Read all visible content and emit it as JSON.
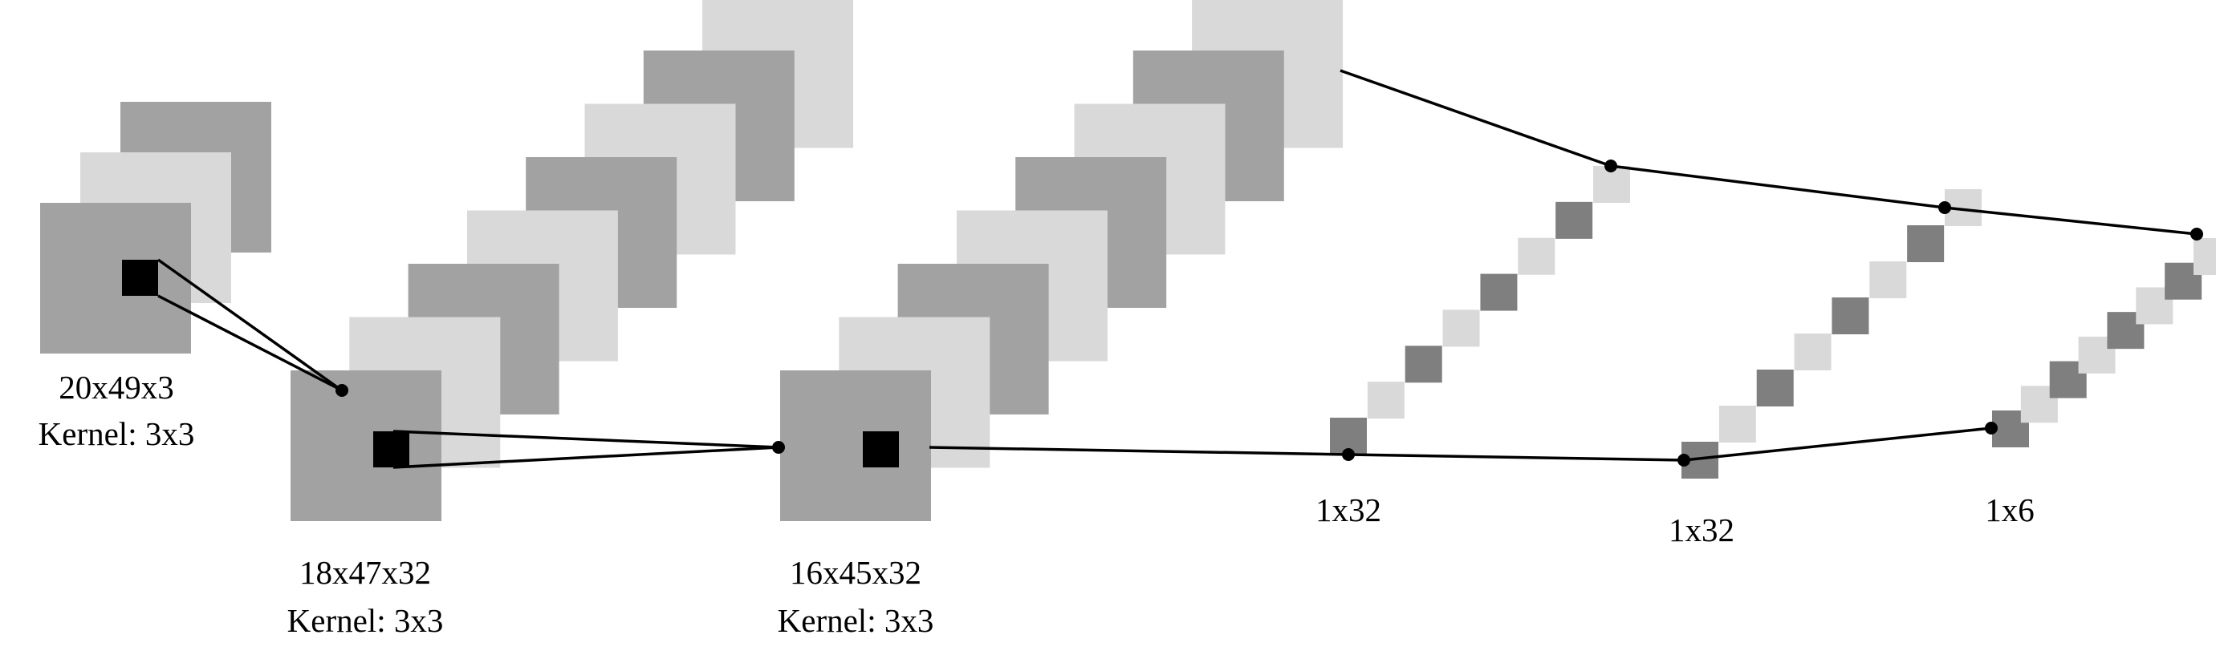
{
  "colors": {
    "dark_gray": "#a2a2a2",
    "light_gray": "#d9d9d9",
    "cell_dark": "#7f7f7f",
    "kernel": "#000000",
    "line": "#000000"
  },
  "layers": [
    {
      "id": "input",
      "shape": "20x49x3",
      "kernel": "Kernel: 3x3",
      "feature_maps": 3
    },
    {
      "id": "conv1",
      "shape": "18x47x32",
      "kernel": "Kernel: 3x3",
      "feature_maps": 8
    },
    {
      "id": "conv2",
      "shape": "16x45x32",
      "kernel": "Kernel: 3x3",
      "feature_maps": 8
    },
    {
      "id": "dense1",
      "shape": "1x32",
      "cells": 8
    },
    {
      "id": "dense2",
      "shape": "1x32",
      "cells": 8
    },
    {
      "id": "output",
      "shape": "1x6",
      "cells": 8
    }
  ]
}
